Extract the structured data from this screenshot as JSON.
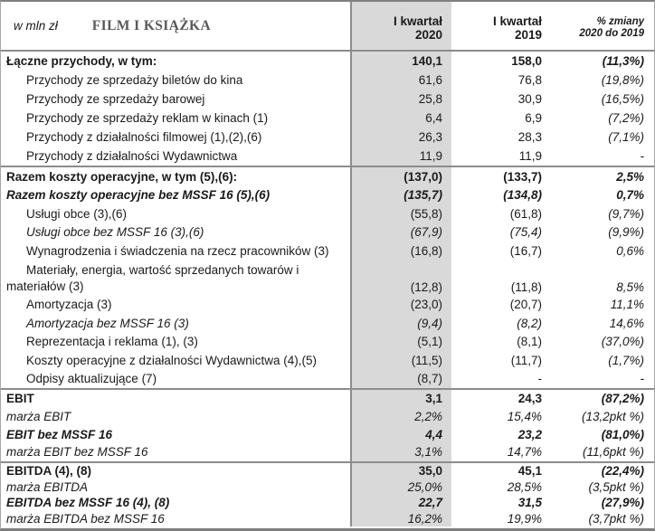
{
  "header": {
    "unit_label": "w mln zł",
    "title": "FILM I KSIĄŻKA",
    "col_2020": {
      "line1": "I kwartał",
      "line2": "2020"
    },
    "col_2019": {
      "line1": "I kwartał",
      "line2": "2019"
    },
    "col_change": {
      "line1": "% zmiany",
      "line2": "2020 do 2019"
    }
  },
  "colors": {
    "highlight_column_bg": "#d9d9d9",
    "section_border": "#8c8c8c",
    "title_text": "#595959",
    "body_text": "#1a1a1a"
  },
  "rows": [
    {
      "label": "Łączne przychody, w tym:",
      "q1_2020": "140,1",
      "q1_2019": "158,0",
      "change": "(11,3%)"
    },
    {
      "label": "Przychody ze sprzedaży biletów do kina",
      "q1_2020": "61,6",
      "q1_2019": "76,8",
      "change": "(19,8%)"
    },
    {
      "label": "Przychody ze sprzedaży barowej",
      "q1_2020": "25,8",
      "q1_2019": "30,9",
      "change": "(16,5%)"
    },
    {
      "label": "Przychody ze sprzedaży reklam w kinach (1)",
      "q1_2020": "6,4",
      "q1_2019": "6,9",
      "change": "(7,2%)"
    },
    {
      "label": "Przychody z działalności filmowej (1),(2),(6)",
      "q1_2020": "26,3",
      "q1_2019": "28,3",
      "change": "(7,1%)"
    },
    {
      "label": "Przychody z działalności Wydawnictwa",
      "q1_2020": "11,9",
      "q1_2019": "11,9",
      "change": "-"
    },
    {
      "label": "Razem koszty operacyjne, w tym (5),(6):",
      "q1_2020": "(137,0)",
      "q1_2019": "(133,7)",
      "change": "2,5%"
    },
    {
      "label": "Razem koszty operacyjne bez MSSF 16 (5),(6)",
      "q1_2020": "(135,7)",
      "q1_2019": "(134,8)",
      "change": "0,7%"
    },
    {
      "label": "Usługi obce (3),(6)",
      "q1_2020": "(55,8)",
      "q1_2019": "(61,8)",
      "change": "(9,7%)"
    },
    {
      "label": "Usługi obce bez MSSF 16 (3),(6)",
      "q1_2020": "(67,9)",
      "q1_2019": "(75,4)",
      "change": "(9,9%)"
    },
    {
      "label": "Wynagrodzenia i świadczenia na rzecz pracowników (3)",
      "q1_2020": "(16,8)",
      "q1_2019": "(16,7)",
      "change": "0,6%"
    },
    {
      "label": "Materiały, energia, wartość sprzedanych towarów i materiałów (3)",
      "q1_2020": "(12,8)",
      "q1_2019": "(11,8)",
      "change": "8,5%"
    },
    {
      "label": "Amortyzacja (3)",
      "q1_2020": "(23,0)",
      "q1_2019": "(20,7)",
      "change": "11,1%"
    },
    {
      "label": "Amortyzacja bez MSSF 16 (3)",
      "q1_2020": "(9,4)",
      "q1_2019": "(8,2)",
      "change": "14,6%"
    },
    {
      "label": "Reprezentacja i reklama (1), (3)",
      "q1_2020": "(5,1)",
      "q1_2019": "(8,1)",
      "change": "(37,0%)"
    },
    {
      "label": "Koszty operacyjne z działalności Wydawnictwa (4),(5)",
      "q1_2020": "(11,5)",
      "q1_2019": "(11,7)",
      "change": "(1,7%)"
    },
    {
      "label": "Odpisy aktualizujące (7)",
      "q1_2020": "(8,7)",
      "q1_2019": "-",
      "change": "-"
    },
    {
      "label": "EBIT",
      "q1_2020": "3,1",
      "q1_2019": "24,3",
      "change": "(87,2%)"
    },
    {
      "label": "marża EBIT",
      "q1_2020": "2,2%",
      "q1_2019": "15,4%",
      "change": "(13,2pkt %)"
    },
    {
      "label": "EBIT bez MSSF 16",
      "q1_2020": "4,4",
      "q1_2019": "23,2",
      "change": "(81,0%)"
    },
    {
      "label": "marża EBIT bez MSSF 16",
      "q1_2020": "3,1%",
      "q1_2019": "14,7%",
      "change": "(11,6pkt %)"
    },
    {
      "label": "EBITDA (4), (8)",
      "q1_2020": "35,0",
      "q1_2019": "45,1",
      "change": "(22,4%)"
    },
    {
      "label": "marża EBITDA",
      "q1_2020": "25,0%",
      "q1_2019": "28,5%",
      "change": "(3,5pkt %)"
    },
    {
      "label": "EBITDA bez MSSF 16 (4), (8)",
      "q1_2020": "22,7",
      "q1_2019": "31,5",
      "change": "(27,9%)"
    },
    {
      "label": "marża EBITDA bez MSSF 16",
      "q1_2020": "16,2%",
      "q1_2019": "19,9%",
      "change": "(3,7pkt %)"
    }
  ]
}
